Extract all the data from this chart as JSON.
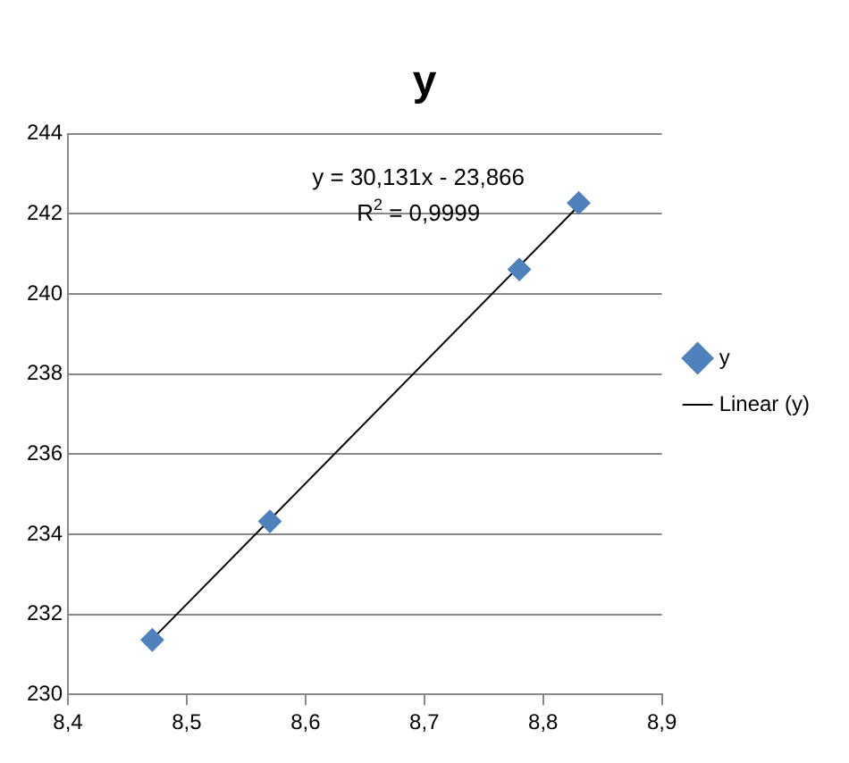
{
  "chart_data": {
    "type": "scatter",
    "title": "y",
    "legend": "right",
    "grid": "y",
    "xlim": [
      8.4,
      8.9
    ],
    "xticks": [
      {
        "value": 8.4,
        "label": "8,4"
      },
      {
        "value": 8.5,
        "label": "8,5"
      },
      {
        "value": 8.6,
        "label": "8,6"
      },
      {
        "value": 8.7,
        "label": "8,7"
      },
      {
        "value": 8.8,
        "label": "8,8"
      },
      {
        "value": 8.9,
        "label": "8,9"
      }
    ],
    "ylim": [
      230,
      244
    ],
    "yticks": [
      230,
      232,
      234,
      236,
      238,
      240,
      242,
      244
    ],
    "series": [
      {
        "name": "y",
        "marker": "diamond",
        "color": "#4f81bd",
        "x": [
          8.471,
          8.57,
          8.78,
          8.83
        ],
        "values": [
          231.36,
          234.32,
          240.61,
          242.27
        ]
      },
      {
        "name": "Linear (y)",
        "type": "line",
        "marker": "none",
        "line_style": "solid",
        "color": "#000000",
        "x": [
          8.471,
          8.83
        ],
        "values": [
          231.38,
          242.2
        ]
      }
    ],
    "annotations": [
      "y = 30,131x - 23,866",
      "R$^{2}$ = 0,9999"
    ]
  }
}
